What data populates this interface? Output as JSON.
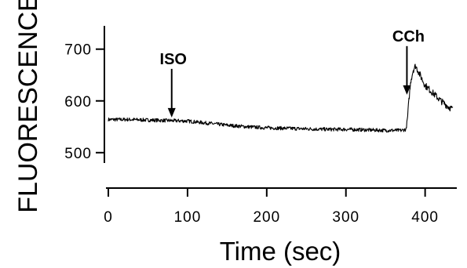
{
  "chart_data": {
    "type": "line",
    "xlabel": "Time (sec)",
    "ylabel": "FLUORESCENCE",
    "xlim": [
      -3,
      440
    ],
    "ylim": [
      480,
      745
    ],
    "x_ticks": [
      0,
      100,
      200,
      300,
      400
    ],
    "x_tick_labels": [
      "0",
      "100",
      "200",
      "300",
      "400"
    ],
    "y_ticks": [
      500,
      600,
      700
    ],
    "y_tick_labels": [
      "500",
      "600",
      "700"
    ],
    "grid": false,
    "series": [
      {
        "x": [
          0,
          25,
          50,
          75,
          100,
          125,
          150,
          175,
          200,
          225,
          250,
          275,
          300,
          325,
          350,
          370,
          376,
          378,
          380,
          382,
          385,
          388,
          392,
          400,
          410,
          420,
          430,
          435
        ],
        "values": [
          564,
          564,
          563,
          562,
          561,
          557,
          553,
          550,
          548,
          547,
          546,
          545,
          545,
          544,
          543,
          543,
          545,
          570,
          610,
          640,
          660,
          668,
          655,
          630,
          615,
          600,
          588,
          584
        ]
      }
    ],
    "annotations": [
      {
        "label": "ISO",
        "x": 80,
        "y": 568
      },
      {
        "label": "CCh",
        "x": 377,
        "y": 612
      }
    ]
  }
}
